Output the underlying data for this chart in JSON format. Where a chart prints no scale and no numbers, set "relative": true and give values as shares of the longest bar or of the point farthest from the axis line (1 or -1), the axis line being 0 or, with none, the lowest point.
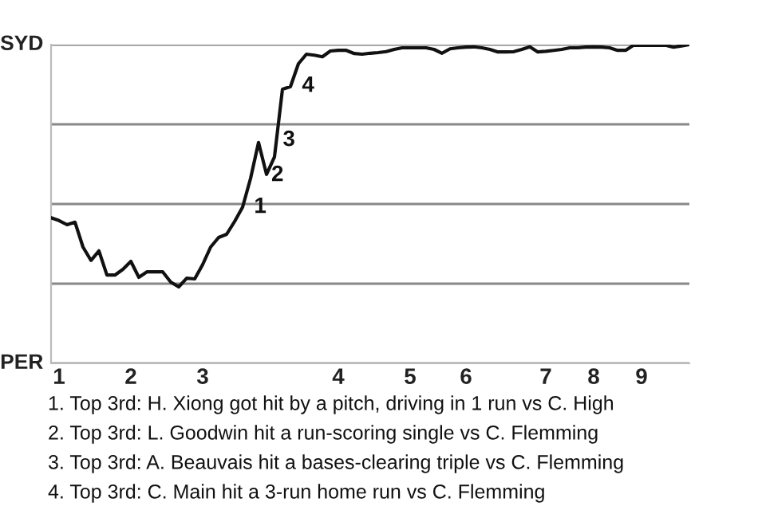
{
  "chart_data": {
    "type": "line",
    "relative": true,
    "categories": [
      null,
      "1",
      null,
      null,
      null,
      null,
      null,
      null,
      null,
      null,
      "2",
      null,
      null,
      null,
      null,
      null,
      null,
      null,
      null,
      "3",
      null,
      null,
      null,
      null,
      null,
      null,
      null,
      null,
      null,
      null,
      null,
      null,
      null,
      null,
      null,
      null,
      "4",
      null,
      null,
      null,
      null,
      null,
      null,
      null,
      null,
      "5",
      null,
      null,
      null,
      null,
      null,
      null,
      "6",
      null,
      null,
      null,
      null,
      null,
      null,
      null,
      null,
      null,
      "7",
      null,
      null,
      null,
      null,
      null,
      "8",
      null,
      null,
      null,
      null,
      null,
      "9",
      null,
      null,
      null,
      null,
      null,
      null
    ],
    "grid": "y",
    "marker": "none",
    "line_style": "solid",
    "series": [
      {
        "color": "#111111",
        "values": [
          0.457,
          0.448,
          0.435,
          0.443,
          0.365,
          0.323,
          0.353,
          0.277,
          0.277,
          0.295,
          0.32,
          0.27,
          0.287,
          0.287,
          0.287,
          0.255,
          0.24,
          0.267,
          0.265,
          0.31,
          0.365,
          0.395,
          0.405,
          0.445,
          0.49,
          0.58,
          0.693,
          0.593,
          0.648,
          0.86,
          0.868,
          0.94,
          0.97,
          0.967,
          0.962,
          0.98,
          0.982,
          0.982,
          0.972,
          0.97,
          0.973,
          0.975,
          0.978,
          0.985,
          0.99,
          0.99,
          0.99,
          0.99,
          0.985,
          0.973,
          0.987,
          0.99,
          0.992,
          0.993,
          0.99,
          0.985,
          0.977,
          0.977,
          0.978,
          0.985,
          0.993,
          0.977,
          0.979,
          0.982,
          0.985,
          0.99,
          0.99,
          0.992,
          0.993,
          0.992,
          0.99,
          0.982,
          0.982,
          0.998,
          0.998,
          0.998,
          0.998,
          0.998,
          0.992,
          0.996,
          1.0
        ]
      }
    ],
    "annotations": [
      "SYD",
      "PER",
      "1",
      "2",
      "3",
      "4",
      "1. Top 3rd: H. Xiong got hit by a pitch, driving in 1 run vs C. High",
      "2. Top 3rd: L. Goodwin hit a run-scoring single vs C. Flemming",
      "3. Top 3rd: A. Beauvais hit a bases-clearing triple vs C. Flemming",
      "4. Top 3rd: C. Main hit a 3-run home run vs C. Flemming"
    ]
  }
}
